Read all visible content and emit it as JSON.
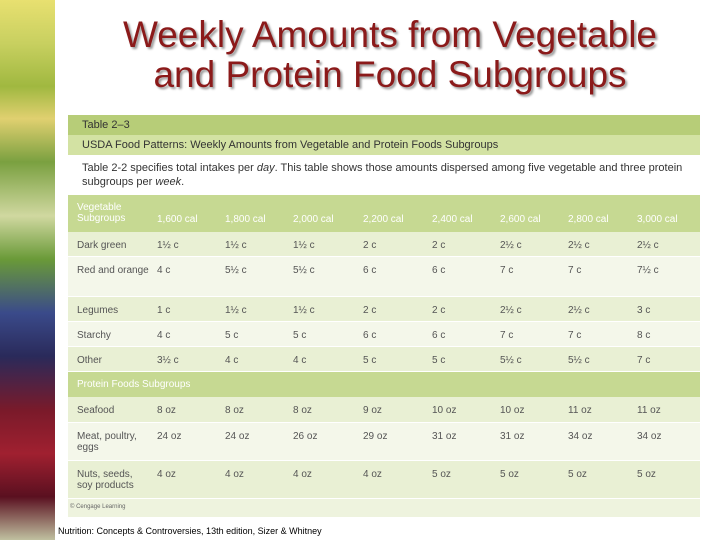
{
  "title": [
    "Weekly Amounts from Vegetable",
    "and Protein Food Subgroups"
  ],
  "table": {
    "label": "Table 2–3",
    "caption": "USDA Food Patterns: Weekly Amounts from Vegetable and Protein Foods Subgroups",
    "description": [
      "Table 2-2 specifies total intakes per ",
      "day",
      ". This table shows those amounts dispersed among five vegetable and three protein subgroups per ",
      "week",
      "."
    ],
    "columns": [
      "Vegetable Subgroups",
      "1,600 cal",
      "1,800 cal",
      "2,000 cal",
      "2,200 cal",
      "2,400 cal",
      "2,600 cal",
      "2,800 cal",
      "3,000 cal"
    ],
    "vegetable_rows": [
      [
        "Dark green",
        "1½ c",
        "1½ c",
        "1½ c",
        "2 c",
        "2 c",
        "2½ c",
        "2½ c",
        "2½ c"
      ],
      [
        "Red and orange",
        "4 c",
        "5½ c",
        "5½ c",
        "6 c",
        "6 c",
        "7 c",
        "7 c",
        "7½ c"
      ],
      [
        "Legumes",
        "1 c",
        "1½ c",
        "1½ c",
        "2 c",
        "2 c",
        "2½ c",
        "2½ c",
        "3 c"
      ],
      [
        "Starchy",
        "4 c",
        "5 c",
        "5 c",
        "6 c",
        "6 c",
        "7 c",
        "7 c",
        "8 c"
      ],
      [
        "Other",
        "3½ c",
        "4 c",
        "4 c",
        "5 c",
        "5 c",
        "5½ c",
        "5½ c",
        "7 c"
      ]
    ],
    "protein_heading": "Protein Foods Subgroups",
    "protein_rows": [
      [
        "Seafood",
        "8 oz",
        "8 oz",
        "8 oz",
        "9 oz",
        "10 oz",
        "10 oz",
        "11 oz",
        "11 oz"
      ],
      [
        "Meat, poultry, eggs",
        "24 oz",
        "24 oz",
        "26 oz",
        "29 oz",
        "31 oz",
        "31 oz",
        "34 oz",
        "34 oz"
      ],
      [
        "Nuts, seeds, soy products",
        "4 oz",
        "4 oz",
        "4 oz",
        "4 oz",
        "5 oz",
        "5 oz",
        "5 oz",
        "5 oz"
      ]
    ],
    "credit": "© Cengage Learning"
  },
  "citation": "Nutrition: Concepts & Controversies, 13th edition, Sizer & Whitney"
}
